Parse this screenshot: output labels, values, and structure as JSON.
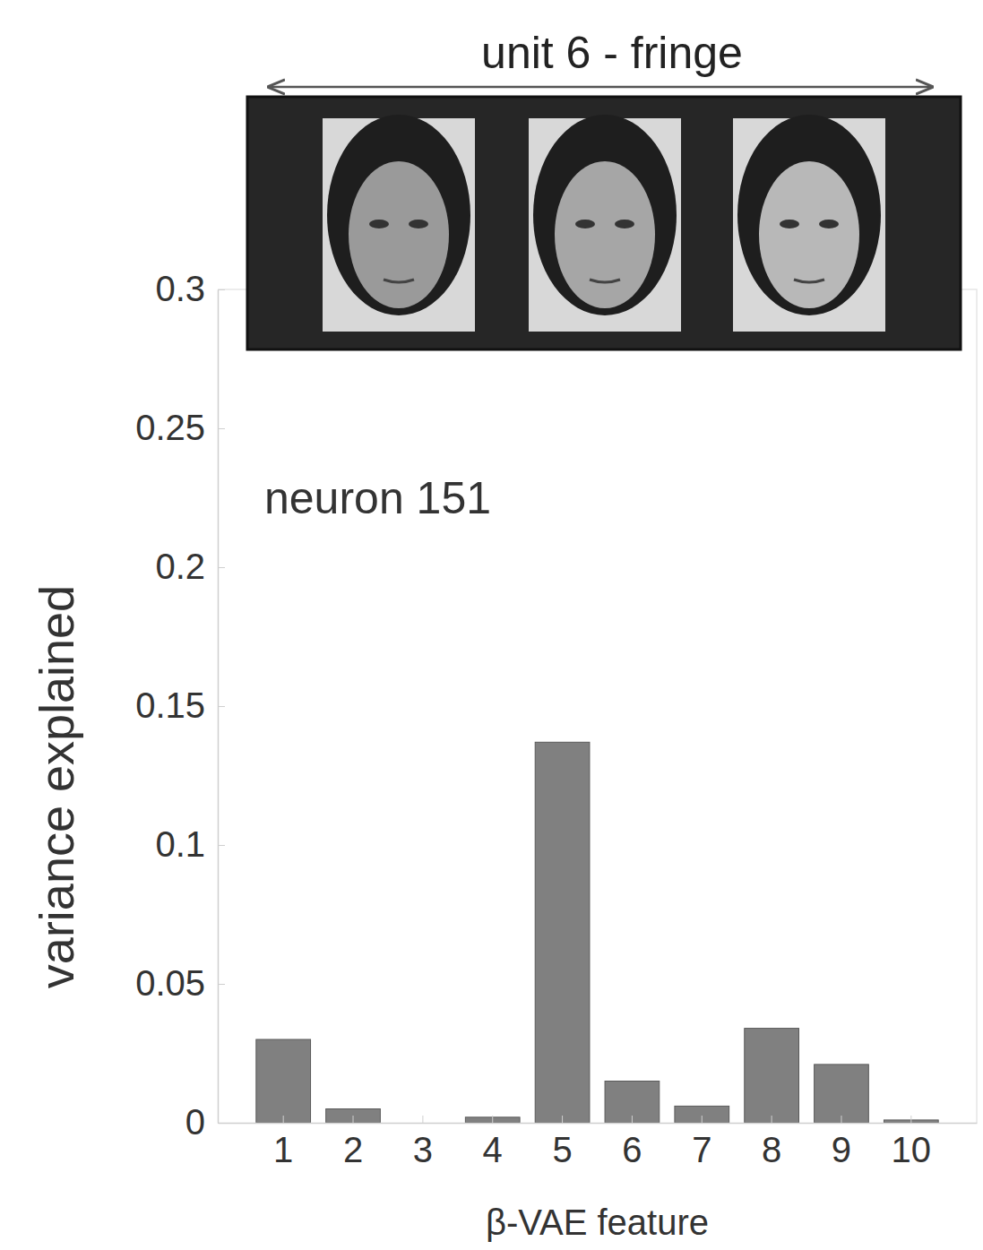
{
  "chart_data": {
    "type": "bar",
    "title": "unit 6 - fringe",
    "annotation": "neuron 151",
    "x_label": "β-VAE feature",
    "y_label": "variance explained",
    "categories": [
      "1",
      "2",
      "3",
      "4",
      "5",
      "6",
      "7",
      "8",
      "9",
      "10"
    ],
    "values": [
      0.03,
      0.005,
      0.0,
      0.002,
      0.137,
      0.015,
      0.006,
      0.034,
      0.021,
      0.001
    ],
    "color": "#808080",
    "ylim": [
      0,
      0.3
    ],
    "yticks": [
      0,
      0.05,
      0.1,
      0.15,
      0.2,
      0.25,
      0.3
    ],
    "grid": false
  }
}
